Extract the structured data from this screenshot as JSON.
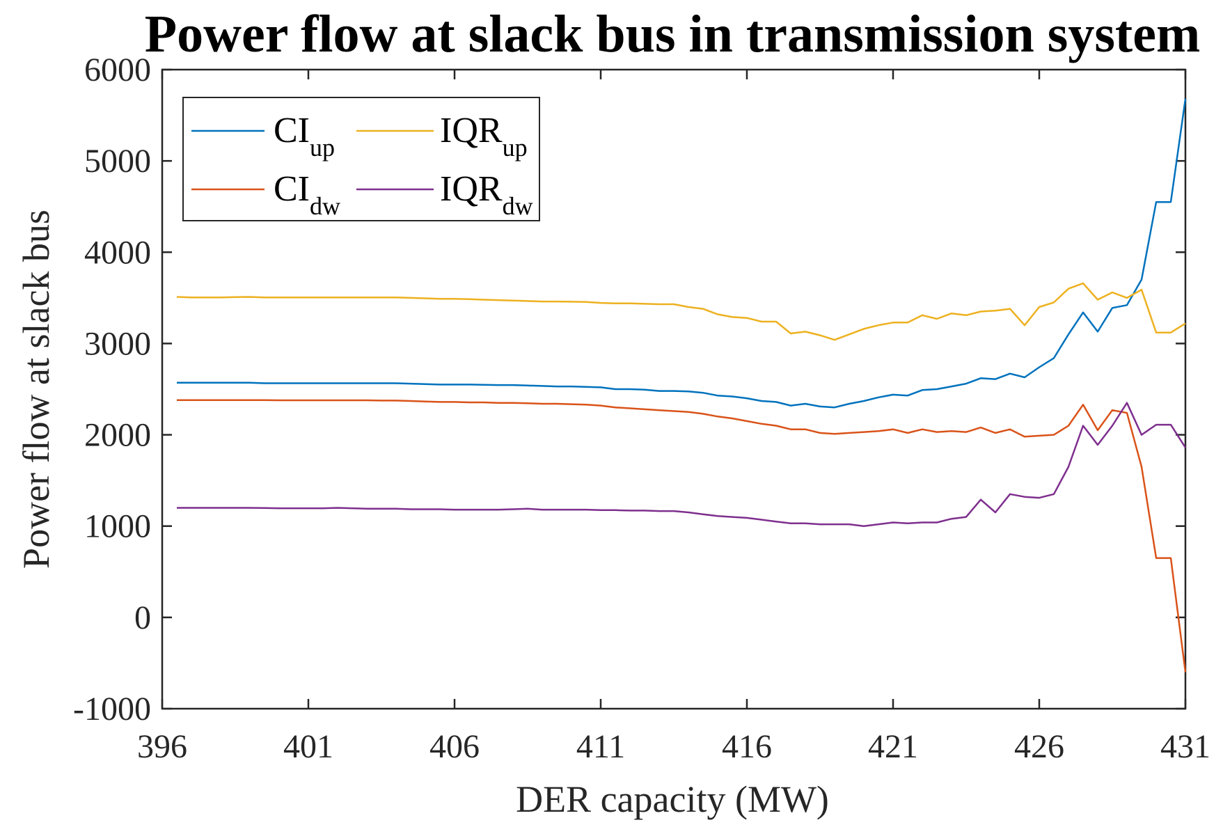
{
  "chart_data": {
    "type": "line",
    "title": "Power flow at slack bus in transmission system",
    "xlabel": "DER capacity (MW)",
    "ylabel": "Power flow at slack bus",
    "xlim": [
      396,
      431
    ],
    "ylim": [
      -1000,
      6000
    ],
    "xticks": [
      396,
      401,
      406,
      411,
      416,
      421,
      426,
      431
    ],
    "yticks": [
      -1000,
      0,
      1000,
      2000,
      3000,
      4000,
      5000,
      6000
    ],
    "legend_placement": "top-left",
    "legend_columns": 2,
    "grid": false,
    "x": [
      396.5,
      397.0,
      397.5,
      398.0,
      398.5,
      399.0,
      399.5,
      400.0,
      400.5,
      401.0,
      401.5,
      402.0,
      402.5,
      403.0,
      403.5,
      404.0,
      404.5,
      405.0,
      405.5,
      406.0,
      406.5,
      407.0,
      407.5,
      408.0,
      408.5,
      409.0,
      409.5,
      410.0,
      410.5,
      411.0,
      411.5,
      412.0,
      412.5,
      413.0,
      413.5,
      414.0,
      414.5,
      415.0,
      415.5,
      416.0,
      416.5,
      417.0,
      417.5,
      418.0,
      418.5,
      419.0,
      419.5,
      420.0,
      420.5,
      421.0,
      421.5,
      422.0,
      422.5,
      423.0,
      423.5,
      424.0,
      424.5,
      425.0,
      425.5,
      426.0,
      426.5,
      427.0,
      427.5,
      428.0,
      428.5,
      429.0,
      429.5,
      430.0,
      430.5,
      431.0
    ],
    "series": [
      {
        "name": "CI_up",
        "label_main": "CI",
        "label_sub": "up",
        "color": "#0072BD",
        "values": [
          2570,
          2570,
          2570,
          2570,
          2570,
          2570,
          2565,
          2565,
          2565,
          2565,
          2565,
          2565,
          2565,
          2565,
          2565,
          2565,
          2560,
          2555,
          2550,
          2550,
          2550,
          2548,
          2545,
          2545,
          2540,
          2535,
          2530,
          2530,
          2525,
          2520,
          2500,
          2500,
          2495,
          2480,
          2480,
          2475,
          2460,
          2430,
          2420,
          2400,
          2370,
          2360,
          2320,
          2340,
          2310,
          2300,
          2340,
          2370,
          2410,
          2440,
          2430,
          2490,
          2500,
          2530,
          2560,
          2620,
          2610,
          2670,
          2630,
          2740,
          2840,
          3100,
          3340,
          3130,
          3390,
          3420,
          3700,
          4550,
          4550,
          5680
        ]
      },
      {
        "name": "IQR_up",
        "label_main": "IQR",
        "label_sub": "up",
        "color": "#EDB120",
        "values": [
          3510,
          3505,
          3505,
          3505,
          3508,
          3510,
          3505,
          3505,
          3505,
          3505,
          3505,
          3505,
          3505,
          3505,
          3505,
          3505,
          3500,
          3495,
          3490,
          3490,
          3485,
          3480,
          3475,
          3470,
          3465,
          3460,
          3460,
          3458,
          3455,
          3445,
          3440,
          3440,
          3435,
          3430,
          3430,
          3400,
          3380,
          3320,
          3290,
          3280,
          3240,
          3240,
          3110,
          3130,
          3090,
          3040,
          3100,
          3160,
          3200,
          3230,
          3230,
          3310,
          3270,
          3330,
          3310,
          3350,
          3360,
          3380,
          3200,
          3400,
          3450,
          3600,
          3660,
          3480,
          3560,
          3500,
          3590,
          3120,
          3120,
          3220
        ]
      },
      {
        "name": "CI_dw",
        "label_main": "CI",
        "label_sub": "dw",
        "color": "#D95319",
        "values": [
          2380,
          2380,
          2380,
          2380,
          2380,
          2380,
          2380,
          2378,
          2378,
          2378,
          2378,
          2378,
          2378,
          2378,
          2375,
          2375,
          2370,
          2365,
          2360,
          2360,
          2355,
          2355,
          2350,
          2350,
          2345,
          2340,
          2340,
          2335,
          2330,
          2320,
          2300,
          2290,
          2280,
          2270,
          2260,
          2250,
          2230,
          2200,
          2180,
          2150,
          2120,
          2100,
          2060,
          2060,
          2020,
          2010,
          2020,
          2030,
          2040,
          2060,
          2020,
          2060,
          2030,
          2040,
          2030,
          2080,
          2020,
          2060,
          1980,
          1990,
          2000,
          2100,
          2330,
          2050,
          2270,
          2240,
          1650,
          650,
          650,
          -600
        ]
      },
      {
        "name": "IQR_dw",
        "label_main": "IQR",
        "label_sub": "dw",
        "color": "#7E2F8E",
        "values": [
          1200,
          1200,
          1200,
          1200,
          1200,
          1200,
          1198,
          1195,
          1195,
          1195,
          1195,
          1200,
          1195,
          1190,
          1190,
          1190,
          1185,
          1185,
          1185,
          1180,
          1180,
          1180,
          1180,
          1185,
          1190,
          1180,
          1180,
          1180,
          1180,
          1175,
          1175,
          1170,
          1170,
          1165,
          1165,
          1150,
          1130,
          1110,
          1100,
          1090,
          1070,
          1050,
          1030,
          1030,
          1020,
          1020,
          1020,
          1000,
          1020,
          1040,
          1030,
          1040,
          1040,
          1080,
          1100,
          1290,
          1150,
          1350,
          1320,
          1310,
          1350,
          1650,
          2100,
          1890,
          2100,
          2350,
          2000,
          2110,
          2110,
          1860
        ]
      }
    ]
  }
}
